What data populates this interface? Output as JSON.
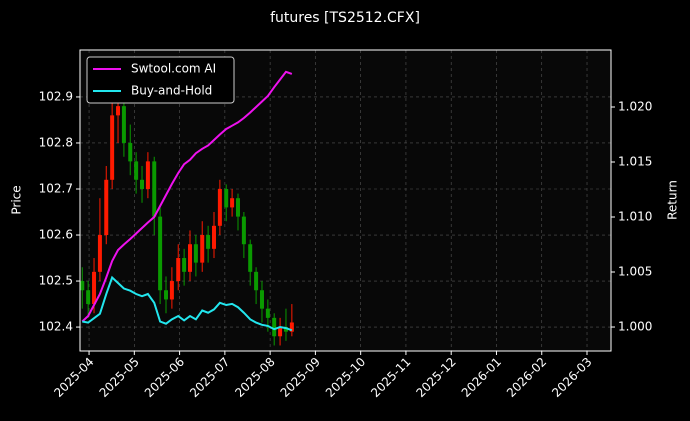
{
  "chart_data": {
    "type": "candlestick",
    "title": "futures [TS2512.CFX]",
    "ylabel": "Price",
    "y2label": "Return",
    "x": [
      -0.15,
      -0.02,
      0.11,
      0.24,
      0.38,
      0.51,
      0.64,
      0.77,
      0.91,
      1.04,
      1.17,
      1.3,
      1.44,
      1.57,
      1.7,
      1.83,
      1.97,
      2.1,
      2.23,
      2.36,
      2.5,
      2.63,
      2.76,
      2.89,
      3.03,
      3.16,
      3.29,
      3.42,
      3.56,
      3.69,
      3.82,
      3.95,
      4.09,
      4.22,
      4.35,
      4.48
    ],
    "open": [
      102.5,
      102.48,
      102.45,
      102.52,
      102.6,
      102.72,
      102.86,
      102.88,
      102.8,
      102.76,
      102.72,
      102.7,
      102.76,
      102.64,
      102.48,
      102.46,
      102.5,
      102.55,
      102.52,
      102.58,
      102.54,
      102.6,
      102.57,
      102.62,
      102.7,
      102.66,
      102.68,
      102.64,
      102.58,
      102.52,
      102.48,
      102.44,
      102.42,
      102.38,
      102.4,
      102.39
    ],
    "high": [
      102.53,
      102.5,
      102.55,
      102.68,
      102.75,
      102.9,
      102.92,
      102.9,
      102.84,
      102.78,
      102.75,
      102.78,
      102.77,
      102.66,
      102.51,
      102.53,
      102.58,
      102.57,
      102.61,
      102.6,
      102.63,
      102.62,
      102.65,
      102.72,
      102.71,
      102.7,
      102.69,
      102.65,
      102.59,
      102.53,
      102.5,
      102.46,
      102.43,
      102.42,
      102.44,
      102.45
    ],
    "low": [
      102.44,
      102.42,
      102.43,
      102.5,
      102.58,
      102.7,
      102.8,
      102.77,
      102.73,
      102.69,
      102.67,
      102.68,
      102.6,
      102.45,
      102.43,
      102.44,
      102.48,
      102.49,
      102.5,
      102.51,
      102.52,
      102.54,
      102.55,
      102.6,
      102.63,
      102.64,
      102.61,
      102.55,
      102.49,
      102.45,
      102.41,
      102.39,
      102.36,
      102.36,
      102.37,
      102.38
    ],
    "close": [
      102.48,
      102.45,
      102.52,
      102.6,
      102.72,
      102.86,
      102.88,
      102.8,
      102.76,
      102.72,
      102.7,
      102.76,
      102.64,
      102.48,
      102.46,
      102.5,
      102.55,
      102.52,
      102.58,
      102.54,
      102.6,
      102.57,
      102.62,
      102.7,
      102.66,
      102.68,
      102.64,
      102.58,
      102.52,
      102.48,
      102.44,
      102.42,
      102.38,
      102.4,
      102.39,
      102.41
    ],
    "up_color": "#ff1a00",
    "down_color": "#0a9a00",
    "series": [
      {
        "name": "Swtool.com AI",
        "color": "#ee11ee",
        "axis": "y2",
        "values": [
          1.0005,
          1.001,
          1.002,
          1.003,
          1.0045,
          1.006,
          1.007,
          1.0075,
          1.008,
          1.0085,
          1.009,
          1.0095,
          1.01,
          1.011,
          1.012,
          1.013,
          1.014,
          1.0148,
          1.0152,
          1.0158,
          1.0162,
          1.0165,
          1.017,
          1.0175,
          1.018,
          1.0183,
          1.0186,
          1.019,
          1.0195,
          1.02,
          1.0205,
          1.021,
          1.0218,
          1.0225,
          1.0232,
          1.023
        ]
      },
      {
        "name": "Buy-and-Hold",
        "color": "#22e6ee",
        "axis": "y2",
        "values": [
          1.0005,
          1.0004,
          1.0008,
          1.0012,
          1.003,
          1.0045,
          1.004,
          1.0035,
          1.0033,
          1.003,
          1.0028,
          1.003,
          1.0022,
          1.0005,
          1.0003,
          1.0007,
          1.001,
          1.0006,
          1.001,
          1.0007,
          1.0015,
          1.0013,
          1.0016,
          1.0022,
          1.002,
          1.0021,
          1.0018,
          1.0013,
          1.0007,
          1.0004,
          1.0002,
          1.0001,
          0.9998,
          1.0,
          0.9999,
          0.9997
        ]
      }
    ],
    "xlim": [
      -0.2,
      11.53
    ],
    "xticks": [
      {
        "value": 0,
        "label": "2025-04"
      },
      {
        "value": 1,
        "label": "2025-05"
      },
      {
        "value": 2,
        "label": "2025-06"
      },
      {
        "value": 3,
        "label": "2025-07"
      },
      {
        "value": 4,
        "label": "2025-08"
      },
      {
        "value": 5,
        "label": "2025-09"
      },
      {
        "value": 6,
        "label": "2025-10"
      },
      {
        "value": 7,
        "label": "2025-11"
      },
      {
        "value": 8,
        "label": "2025-12"
      },
      {
        "value": 9,
        "label": "2026-01"
      },
      {
        "value": 10,
        "label": "2026-02"
      },
      {
        "value": 11,
        "label": "2026-03"
      }
    ],
    "ylim": [
      102.348,
      103.002
    ],
    "yticks": [
      102.4,
      102.5,
      102.6,
      102.7,
      102.8,
      102.9
    ],
    "y2lim": [
      0.99782,
      1.02518
    ],
    "y2ticks": [
      {
        "value": 1,
        "label": "1.000"
      },
      {
        "value": 1.005,
        "label": "1.005"
      },
      {
        "value": 1.01,
        "label": "1.010"
      },
      {
        "value": 1.015,
        "label": "1.015"
      },
      {
        "value": 1.02,
        "label": "1.020"
      }
    ],
    "grid": true,
    "legend": "upper left"
  }
}
